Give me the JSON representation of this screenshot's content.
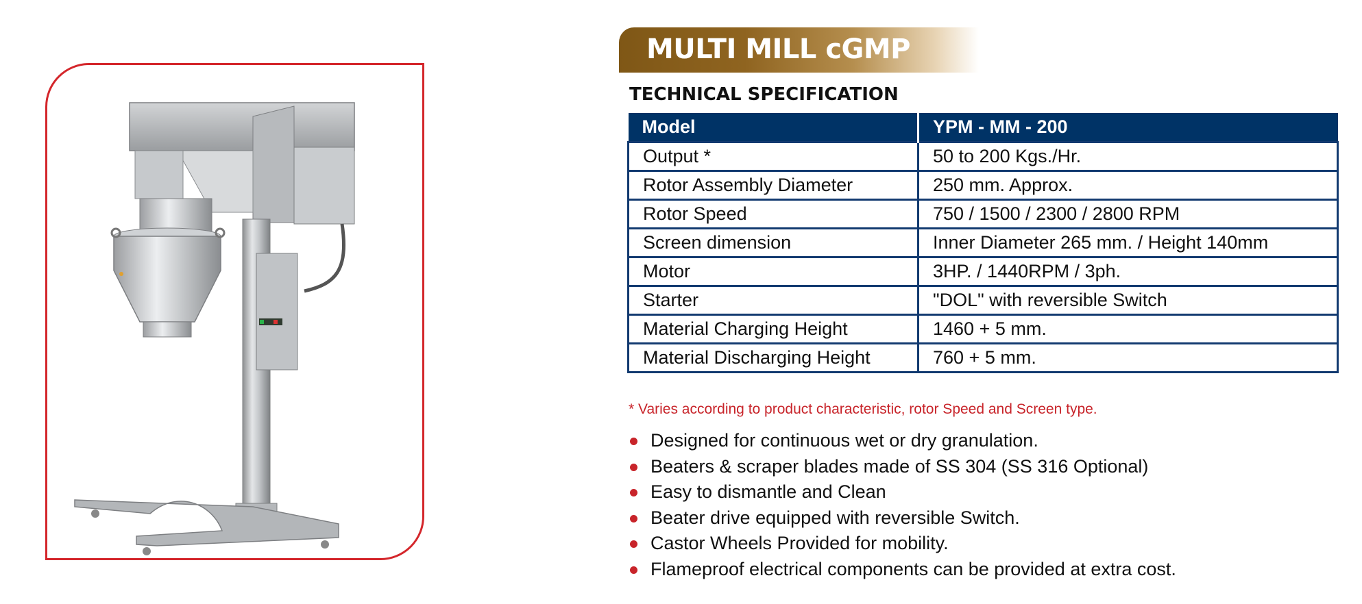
{
  "title": "MULTI MILL cGMP",
  "subtitle": "TECHNICAL SPECIFICATION",
  "spec_table": {
    "headers": [
      "Model",
      "YPM - MM - 200"
    ],
    "rows": [
      [
        "Output *",
        "50 to 200 Kgs./Hr."
      ],
      [
        "Rotor Assembly Diameter",
        "250 mm. Approx."
      ],
      [
        "Rotor Speed",
        "750 / 1500 / 2300 / 2800 RPM"
      ],
      [
        "Screen dimension",
        "Inner Diameter 265 mm. / Height 140mm"
      ],
      [
        "Motor",
        "3HP. / 1440RPM / 3ph."
      ],
      [
        "Starter",
        "\"DOL\" with reversible Switch"
      ],
      [
        "Material Charging Height",
        "1460 + 5 mm."
      ],
      [
        "Material Discharging Height",
        "760 + 5 mm."
      ]
    ]
  },
  "footnote": "* Varies according to product characteristic, rotor Speed and Screen type.",
  "features": [
    "Designed for continuous wet or dry granulation.",
    "Beaters & scraper blades made of SS 304 (SS 316 Optional)",
    "Easy to dismantle and Clean",
    "Beater drive equipped with reversible Switch.",
    "Castor Wheels Provided for mobility.",
    "Flameproof electrical components can be provided at extra cost."
  ],
  "colors": {
    "accent_red": "#c8242a",
    "header_navy": "#003366",
    "title_bronze": "#8f6420"
  }
}
